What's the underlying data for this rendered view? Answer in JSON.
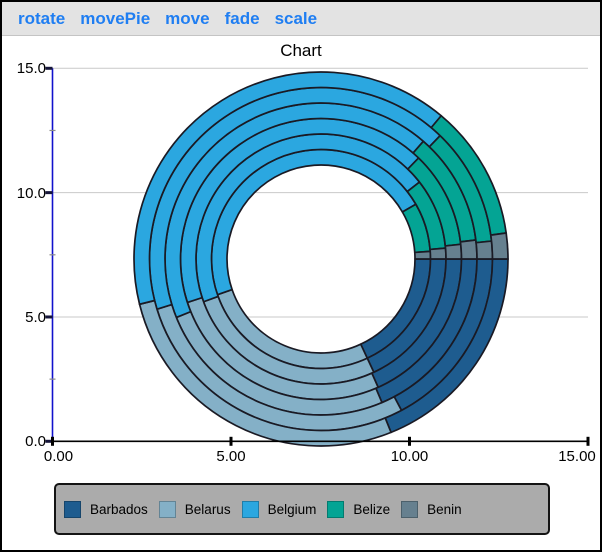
{
  "toolbar": {
    "background": "#E3E3E3",
    "link_color": "#1F7EF2",
    "items": [
      "rotate",
      "movePie",
      "move",
      "fade",
      "scale"
    ]
  },
  "chart_data": {
    "type": "pie",
    "subtype": "concentric-multi-ring-donut",
    "title": "Chart",
    "categories": [
      "Barbados",
      "Belarus",
      "Belgium",
      "Belize",
      "Benin"
    ],
    "slice_colors": [
      "#1E5C8F",
      "#84B0C7",
      "#2BA7E0",
      "#04A494",
      "#66808F"
    ],
    "stroke_color": "#1A1A24",
    "start_angle_deg": 0,
    "direction": "clockwise",
    "rings_inner_to_outer": [
      {
        "slices_deg": [
          65,
          96,
          169,
          26,
          4
        ]
      },
      {
        "slices_deg": [
          65,
          95,
          162,
          33,
          5
        ]
      },
      {
        "slices_deg": [
          66,
          96,
          152,
          40,
          6
        ]
      },
      {
        "slices_deg": [
          67,
          91,
          153,
          42,
          7
        ]
      },
      {
        "slices_deg": [
          62,
          101,
          151,
          40,
          6
        ]
      },
      {
        "slices_deg": [
          68,
          98,
          144,
          42,
          8
        ]
      }
    ],
    "x_axis": {
      "min": 0,
      "max": 15,
      "tick_values": [
        0,
        5,
        10,
        15
      ],
      "tick_labels": [
        "0.00",
        "5.00",
        "10.00",
        "15.00"
      ],
      "axis_color": "#000000"
    },
    "y_axis": {
      "min": 0,
      "max": 15,
      "tick_values": [
        0,
        5,
        10,
        15
      ],
      "tick_labels": [
        "0.0",
        "5.0",
        "10.0",
        "15.0"
      ],
      "minor_ticks": [
        2.5,
        7.5,
        12.5
      ],
      "axis_color": "#1111CC"
    },
    "grid_color": "#C9C9C9",
    "grid_values": [
      5,
      10,
      15
    ],
    "legend": {
      "background": "#ABABAB",
      "labels": [
        "Barbados",
        "Belarus",
        "Belgium",
        "Belize",
        "Benin"
      ]
    }
  }
}
